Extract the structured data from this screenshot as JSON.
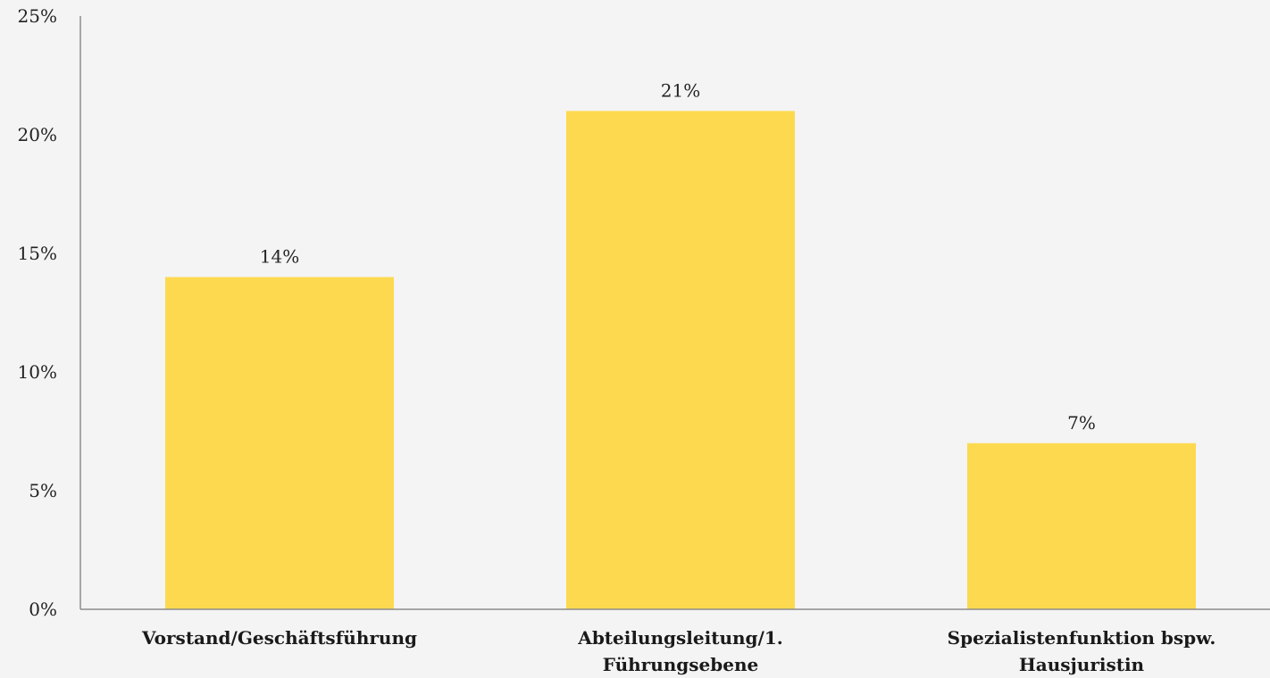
{
  "chart_data": {
    "type": "bar",
    "title": "",
    "xlabel": "",
    "ylabel": "",
    "categories": [
      [
        "Vorstand/Geschäftsführung"
      ],
      [
        "Abteilungsleitung/1.",
        "Führungsebene"
      ],
      [
        "Spezialistenfunktion bspw.",
        "Hausjuristin"
      ]
    ],
    "values": [
      14,
      21,
      7
    ],
    "value_labels": [
      "14%",
      "21%",
      "7%"
    ],
    "ylim": [
      0,
      25
    ],
    "y_ticks": [
      0,
      5,
      10,
      15,
      20,
      25
    ],
    "y_tick_labels": [
      "0%",
      "5%",
      "10%",
      "15%",
      "20%",
      "25%"
    ],
    "grid": false,
    "legend": "none",
    "colors": {
      "bar": "#FDD94F",
      "axis": "#8c8c8c",
      "background": "#f4f4f4"
    }
  }
}
